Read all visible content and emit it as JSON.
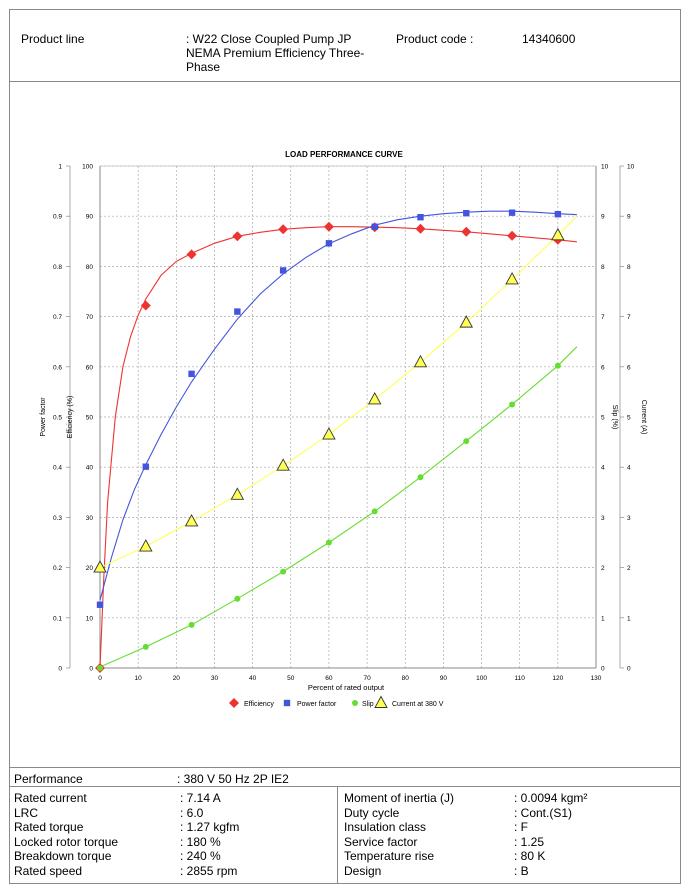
{
  "header": {
    "product_line_label": "Product line",
    "product_line_value": ": W22 Close Coupled Pump JP NEMA Premium Efficiency Three-Phase",
    "product_code_label": "Product code :",
    "product_code_value": "14340600"
  },
  "chart_data": {
    "type": "line",
    "title": "LOAD PERFORMANCE CURVE",
    "xlabel": "Percent of rated output",
    "x_ticks": [
      "0",
      "10",
      "20",
      "30",
      "40",
      "50",
      "60",
      "70",
      "80",
      "90",
      "100",
      "110",
      "120",
      "130"
    ],
    "xlim": [
      0,
      130
    ],
    "grid": true,
    "legend_position": "bottom",
    "axes": {
      "power_factor": {
        "label": "Power factor",
        "ticks": [
          "0",
          "0.1",
          "0.2",
          "0.3",
          "0.4",
          "0.5",
          "0.6",
          "0.7",
          "0.8",
          "0.9",
          "1"
        ],
        "range": [
          0,
          1
        ]
      },
      "efficiency": {
        "label": "Efficiency (%)",
        "ticks": [
          "0",
          "10",
          "20",
          "30",
          "40",
          "50",
          "60",
          "70",
          "80",
          "90",
          "100"
        ],
        "range": [
          0,
          100
        ]
      },
      "slip": {
        "label": "Slip (%)",
        "ticks": [
          "0",
          "1",
          "2",
          "3",
          "4",
          "5",
          "6",
          "7",
          "8",
          "9",
          "10"
        ],
        "range": [
          0,
          10
        ]
      },
      "current": {
        "label": "Current (A)",
        "ticks": [
          "0",
          "1",
          "2",
          "3",
          "4",
          "5",
          "6",
          "7",
          "8",
          "9",
          "10"
        ],
        "range": [
          0,
          10
        ]
      }
    },
    "series": [
      {
        "name": "Efficiency",
        "axis": "efficiency",
        "color": "#ee3333",
        "marker": "diamond",
        "x": [
          0,
          12,
          24,
          36,
          48,
          60,
          72,
          84,
          96,
          108,
          120
        ],
        "y": [
          0,
          72.2,
          82.4,
          86.0,
          87.4,
          87.9,
          87.8,
          87.5,
          86.9,
          86.1,
          85.3
        ],
        "curve_x": [
          0,
          1,
          2,
          4,
          6,
          8,
          10,
          12,
          16,
          20,
          24,
          30,
          36,
          42,
          48,
          54,
          60,
          66,
          72,
          78,
          84,
          90,
          96,
          102,
          108,
          114,
          120,
          125
        ],
        "curve_y": [
          0,
          18,
          33,
          50,
          60,
          66,
          70.3,
          73.5,
          78.2,
          81.0,
          82.6,
          84.6,
          86.0,
          86.8,
          87.4,
          87.7,
          87.9,
          87.9,
          87.8,
          87.7,
          87.5,
          87.2,
          86.9,
          86.5,
          86.1,
          85.7,
          85.3,
          84.9
        ]
      },
      {
        "name": "Power factor",
        "axis": "efficiency",
        "color": "#4455dd",
        "marker": "square",
        "x": [
          0,
          12,
          24,
          36,
          48,
          60,
          72,
          84,
          96,
          108,
          120
        ],
        "y": [
          12.6,
          40.1,
          58.6,
          71.0,
          79.2,
          84.6,
          87.9,
          89.8,
          90.6,
          90.7,
          90.4
        ],
        "curve_x": [
          0,
          3,
          6,
          9,
          12,
          16,
          20,
          24,
          30,
          36,
          42,
          48,
          54,
          60,
          66,
          72,
          78,
          84,
          90,
          96,
          102,
          108,
          114,
          120,
          125
        ],
        "curve_y": [
          13.5,
          22,
          29.5,
          35.5,
          40.5,
          46.5,
          52,
          57,
          63.5,
          69.5,
          74.5,
          78.5,
          81.8,
          84.5,
          86.5,
          88.2,
          89.3,
          90.0,
          90.5,
          90.8,
          91.0,
          91.0,
          90.8,
          90.5,
          90.3
        ]
      },
      {
        "name": "Slip",
        "axis": "slip",
        "color": "#66dd33",
        "marker": "circle",
        "x": [
          0,
          12,
          24,
          36,
          48,
          60,
          72,
          84,
          96,
          108,
          120
        ],
        "y": [
          0.0,
          0.42,
          0.86,
          1.38,
          1.92,
          2.5,
          3.12,
          3.8,
          4.52,
          5.25,
          6.02
        ],
        "curve_x": [
          0,
          12,
          24,
          36,
          48,
          60,
          72,
          84,
          96,
          108,
          120,
          125
        ],
        "curve_y": [
          0.02,
          0.42,
          0.86,
          1.38,
          1.92,
          2.5,
          3.12,
          3.8,
          4.52,
          5.25,
          6.02,
          6.4
        ]
      },
      {
        "name": "Current at 380 V",
        "axis": "current",
        "color": "#ffff55",
        "marker": "triangle",
        "x": [
          0,
          12,
          24,
          36,
          48,
          60,
          72,
          84,
          96,
          108,
          120
        ],
        "y": [
          2.0,
          2.42,
          2.92,
          3.45,
          4.03,
          4.65,
          5.35,
          6.09,
          6.88,
          7.74,
          8.62
        ],
        "curve_x": [
          0,
          12,
          24,
          36,
          48,
          60,
          72,
          84,
          96,
          108,
          120,
          125
        ],
        "curve_y": [
          2.0,
          2.42,
          2.92,
          3.45,
          4.03,
          4.65,
          5.35,
          6.09,
          6.88,
          7.74,
          8.62,
          9.0
        ]
      }
    ]
  },
  "specs": {
    "performance_label": "Performance",
    "performance_value": ": 380 V 50 Hz 2P IE2",
    "left": [
      {
        "label": "Rated current",
        "value": ": 7.14 A"
      },
      {
        "label": "LRC",
        "value": ": 6.0"
      },
      {
        "label": "Rated torque",
        "value": ": 1.27 kgfm"
      },
      {
        "label": "Locked rotor torque",
        "value": ": 180 %"
      },
      {
        "label": "Breakdown torque",
        "value": ": 240 %"
      },
      {
        "label": "Rated speed",
        "value": ": 2855 rpm"
      }
    ],
    "right": [
      {
        "label": "Moment of inertia (J)",
        "value": ": 0.0094 kgm²"
      },
      {
        "label": "Duty cycle",
        "value": ": Cont.(S1)"
      },
      {
        "label": "Insulation class",
        "value": ": F"
      },
      {
        "label": "Service factor",
        "value": ": 1.25"
      },
      {
        "label": "Temperature rise",
        "value": ": 80 K"
      },
      {
        "label": "Design",
        "value": ": B"
      }
    ]
  }
}
